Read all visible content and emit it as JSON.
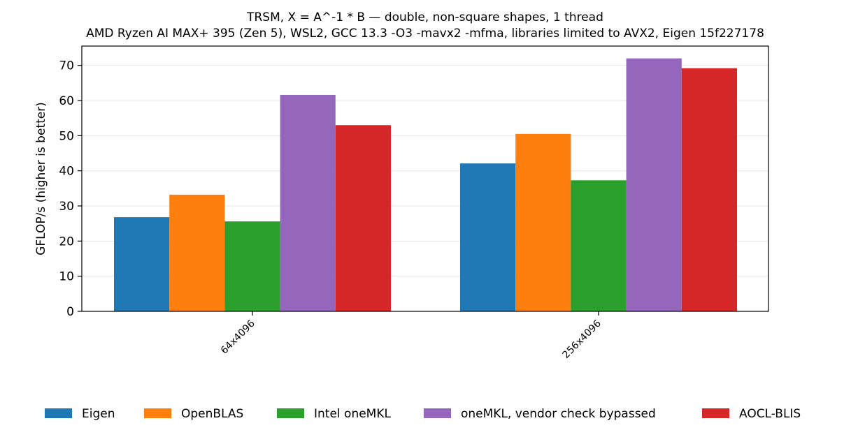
{
  "chart_data": {
    "type": "bar",
    "title": "TRSM, X = A^-1 * B — double, non-square shapes, 1 thread",
    "subtitle": "AMD Ryzen AI MAX+ 395 (Zen 5), WSL2, GCC 13.3 -O3 -mavx2 -mfma, libraries limited to AVX2, Eigen 15f227178",
    "xlabel": "",
    "ylabel": "GFLOP/s (higher is better)",
    "ylim": [
      0,
      75.5
    ],
    "yticks": [
      "0",
      "10",
      "20",
      "30",
      "40",
      "50",
      "60",
      "70"
    ],
    "grid": "horizontal",
    "legend_position": "bottom",
    "categories": [
      "64x4096",
      "256x4096"
    ],
    "series": [
      {
        "name": "Eigen",
        "color": "#1f77b4",
        "values": [
          26.8,
          42.1
        ]
      },
      {
        "name": "OpenBLAS",
        "color": "#ff7f0e",
        "values": [
          33.2,
          50.5
        ]
      },
      {
        "name": "Intel oneMKL",
        "color": "#2ca02c",
        "values": [
          25.6,
          37.3
        ]
      },
      {
        "name": "oneMKL, vendor check bypassed",
        "color": "#9467bd",
        "values": [
          61.6,
          72.0
        ]
      },
      {
        "name": "AOCL-BLIS",
        "color": "#d62728",
        "values": [
          53.0,
          69.2
        ]
      }
    ]
  }
}
